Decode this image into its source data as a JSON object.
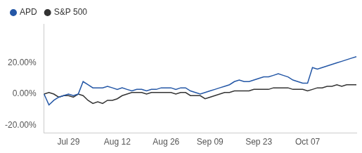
{
  "chart_data": {
    "type": "line",
    "categories": [
      null,
      null,
      null,
      null,
      null,
      "Jul 29",
      null,
      null,
      null,
      null,
      null,
      null,
      null,
      null,
      null,
      "Aug 12",
      null,
      null,
      null,
      null,
      null,
      null,
      null,
      null,
      null,
      "Aug 26",
      null,
      null,
      null,
      null,
      null,
      null,
      null,
      null,
      "Sep 09",
      null,
      null,
      null,
      null,
      null,
      null,
      null,
      null,
      null,
      "Sep 23",
      null,
      null,
      null,
      null,
      null,
      null,
      null,
      null,
      null,
      "Oct 07",
      null,
      null,
      null,
      null,
      null,
      null,
      null,
      null,
      null,
      null
    ],
    "series": [
      {
        "name": "APD",
        "color": "#2457a6",
        "values": [
          0,
          -7,
          -4,
          -2,
          -1,
          0,
          -1,
          0,
          8,
          6,
          4,
          4,
          4,
          5,
          4,
          3,
          4,
          3,
          2,
          3,
          3,
          2,
          3,
          3,
          4,
          4,
          4,
          3,
          4,
          4,
          2,
          1,
          0,
          1,
          2,
          3,
          4,
          5,
          6,
          8,
          9,
          8,
          8,
          9,
          10,
          11,
          11,
          12,
          13,
          12,
          11,
          9,
          8,
          7,
          7,
          17,
          16,
          17,
          18,
          19,
          20,
          21,
          22,
          23,
          24
        ]
      },
      {
        "name": "S&P 500",
        "color": "#333333",
        "values": [
          0,
          1,
          0,
          -2,
          -1,
          -1,
          -2,
          0,
          -1,
          -4,
          -6,
          -5,
          -6,
          -4,
          -4,
          -3,
          -1,
          0,
          1,
          1,
          1,
          0,
          1,
          1,
          1,
          1,
          1,
          0,
          1,
          1,
          -1,
          -1,
          -1,
          -3,
          -2,
          -1,
          0,
          1,
          1,
          2,
          2,
          2,
          2,
          3,
          3,
          3,
          3,
          4,
          4,
          4,
          4,
          3,
          3,
          3,
          2,
          3,
          4,
          4,
          5,
          5,
          6,
          5,
          6,
          6,
          6
        ]
      }
    ],
    "ylim": [
      -25,
      45
    ],
    "yticks": [
      {
        "value": -20,
        "label": "-20.00%"
      },
      {
        "value": 0,
        "label": "0.00%"
      },
      {
        "value": 20,
        "label": "20.00%"
      }
    ],
    "grid": false,
    "legend": "top-left"
  }
}
